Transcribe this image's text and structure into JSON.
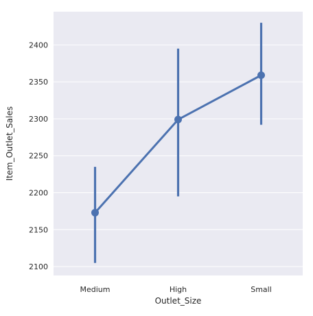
{
  "chart_data": {
    "type": "line",
    "style": "point plot with confidence interval error bars",
    "xlabel": "Outlet_Size",
    "ylabel": "Item_Outlet_Sales",
    "categories": [
      "Medium",
      "High",
      "Small"
    ],
    "series": [
      {
        "values": [
          2173,
          2299,
          2359
        ],
        "ci_low": [
          2105,
          2195,
          2292
        ],
        "ci_high": [
          2235,
          2395,
          2430
        ]
      }
    ],
    "ylim": [
      2088,
      2445
    ],
    "yticks": [
      2100,
      2150,
      2200,
      2250,
      2300,
      2350,
      2400
    ],
    "grid": true,
    "legend": "none"
  },
  "colors": {
    "plot_background": "#eaeaf2",
    "grid": "#ffffff",
    "series": "#4c72b0",
    "text": "#262626"
  }
}
